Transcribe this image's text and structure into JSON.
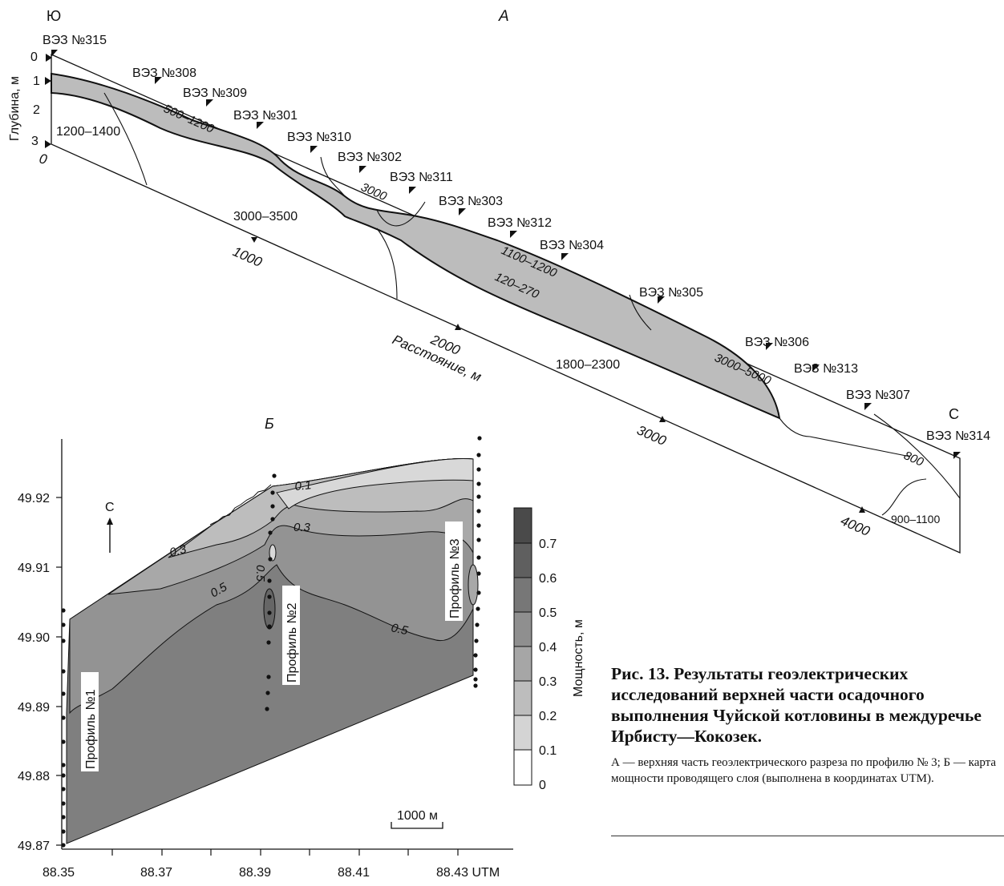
{
  "panel_a": {
    "panel_label": "А",
    "south_label": "Ю",
    "north_label": "С",
    "depth_axis_label": "Глубина, м",
    "depth_ticks": [
      "0",
      "1",
      "2",
      "3"
    ],
    "distance_label": "Расстояние, м",
    "distance_ticks": [
      "0",
      "1000",
      "2000",
      "3000",
      "4000"
    ],
    "stations": [
      "ВЭЗ №315",
      "ВЭЗ №308",
      "ВЭЗ №309",
      "ВЭЗ №301",
      "ВЭЗ №310",
      "ВЭЗ №302",
      "ВЭЗ №311",
      "ВЭЗ №303",
      "ВЭЗ №312",
      "ВЭЗ №304",
      "ВЭЗ №305",
      "ВЭЗ №306",
      "ВЭЗ №313",
      "ВЭЗ №307",
      "ВЭЗ №314"
    ],
    "resistivity_labels": [
      "1200–1400",
      "500–1200",
      "3000",
      "3000–3500",
      "1100–1200",
      "120–270",
      "1800–2300",
      "3000–5000",
      "800",
      "900–1100"
    ]
  },
  "panel_b": {
    "panel_label": "Б",
    "north_label": "С",
    "y_ticks": [
      "49.92",
      "49.91",
      "49.90",
      "49.89",
      "49.88",
      "49.87"
    ],
    "x_ticks": [
      "88.35",
      "88.37",
      "88.39",
      "88.41",
      "88.43 UTM"
    ],
    "contour_labels": [
      "0.1",
      "0.3",
      "0.3",
      "0.5",
      "0.5",
      "0.5"
    ],
    "profiles": [
      "Профиль №1",
      "Профиль №2",
      "Профиль №3"
    ],
    "scale_bar": "1000 м",
    "colorbar_label": "Мощность, м",
    "colorbar_ticks": [
      "0.7",
      "0.6",
      "0.5",
      "0.4",
      "0.3",
      "0.2",
      "0.1",
      "0"
    ],
    "colorbar_colors": [
      "#4a4a4a",
      "#5f5f5f",
      "#777777",
      "#8f8f8f",
      "#a6a6a6",
      "#bdbdbd",
      "#d4d4d4",
      "#ffffff"
    ]
  },
  "caption": {
    "title": "Рис. 13. Результаты геоэлектрических исследований верхней части осадочного выполнения Чуйской котловины в междуречье Ирбисту—Кокозек.",
    "text": "А — верхняя часть геоэлектрического разреза по профилю № 3; Б — карта мощности проводящего слоя (выполнена в координатах UTM)."
  }
}
